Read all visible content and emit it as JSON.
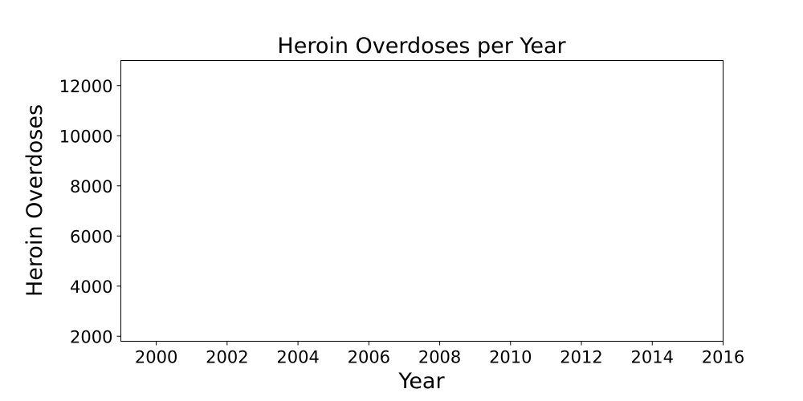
{
  "chart_data": {
    "type": "line",
    "title": "Heroin Overdoses per Year",
    "xlabel": "Year",
    "ylabel": "Heroin Overdoses",
    "xlim": [
      1999,
      2016
    ],
    "ylim": [
      1800,
      13000
    ],
    "x_ticks": [
      2000,
      2002,
      2004,
      2006,
      2008,
      2010,
      2012,
      2014,
      2016
    ],
    "y_ticks": [
      2000,
      4000,
      6000,
      8000,
      10000,
      12000
    ],
    "grid": false,
    "series": [],
    "axis_color": "#000000",
    "background": "#ffffff"
  }
}
